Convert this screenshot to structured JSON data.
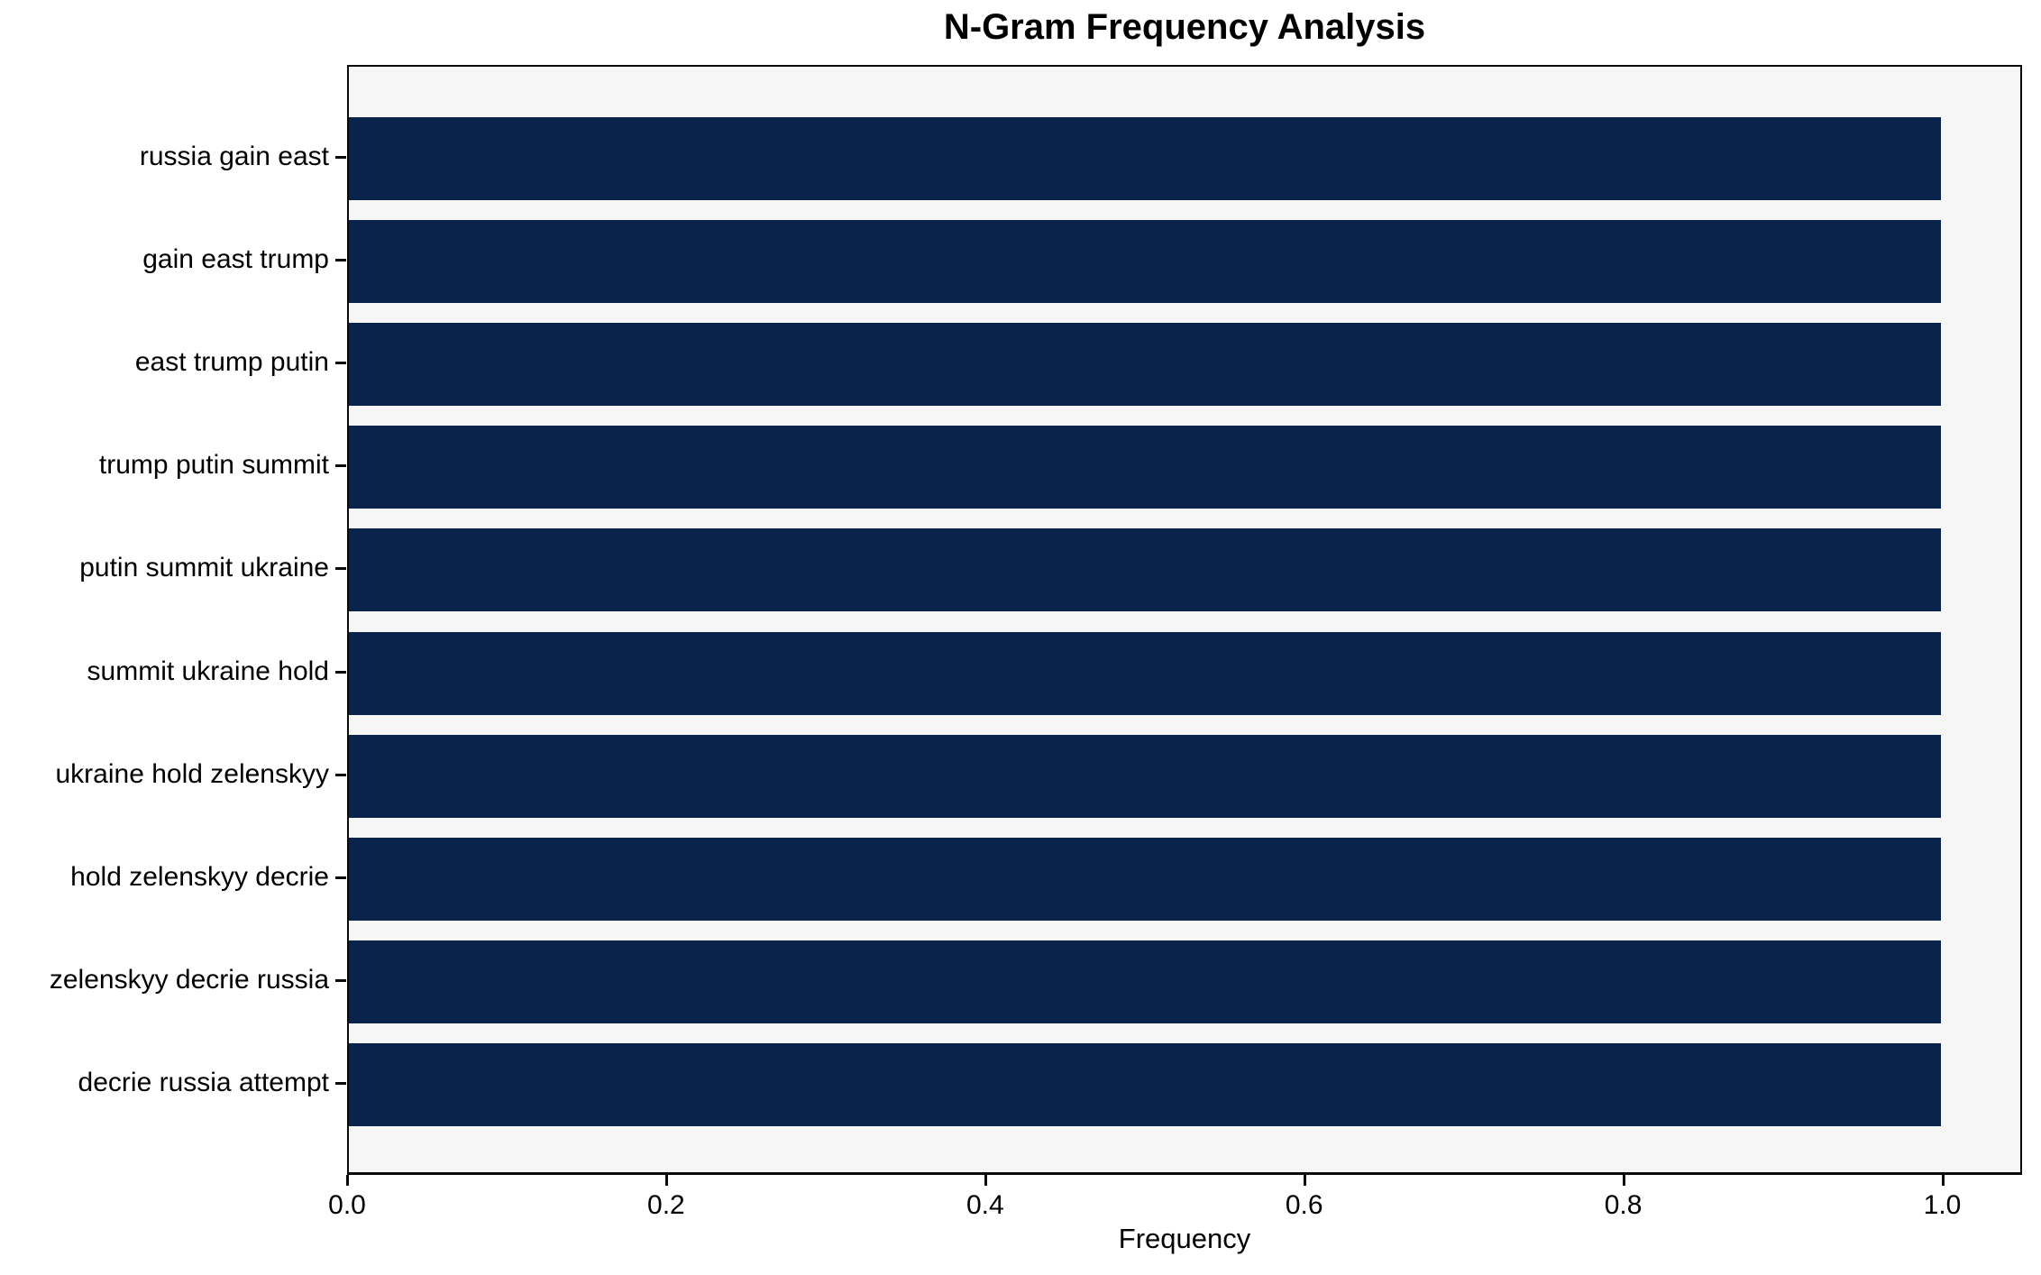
{
  "chart_data": {
    "type": "bar",
    "orientation": "horizontal",
    "title": "N-Gram Frequency Analysis",
    "xlabel": "Frequency",
    "ylabel": "",
    "categories": [
      "russia gain east",
      "gain east trump",
      "east trump putin",
      "trump putin summit",
      "putin summit ukraine",
      "summit ukraine hold",
      "ukraine hold zelenskyy",
      "hold zelenskyy decrie",
      "zelenskyy decrie russia",
      "decrie russia attempt"
    ],
    "values": [
      1.0,
      1.0,
      1.0,
      1.0,
      1.0,
      1.0,
      1.0,
      1.0,
      1.0,
      1.0
    ],
    "xlim": [
      0,
      1.05
    ],
    "xticks": [
      0.0,
      0.2,
      0.4,
      0.6,
      0.8,
      1.0
    ],
    "xtick_labels": [
      "0.0",
      "0.2",
      "0.4",
      "0.6",
      "0.8",
      "1.0"
    ],
    "grid": false,
    "legend": null,
    "colors": {
      "bar": "#09234b",
      "plot_background": "#f6f6f6",
      "figure_background": "#ffffff",
      "text": "#000000"
    }
  }
}
